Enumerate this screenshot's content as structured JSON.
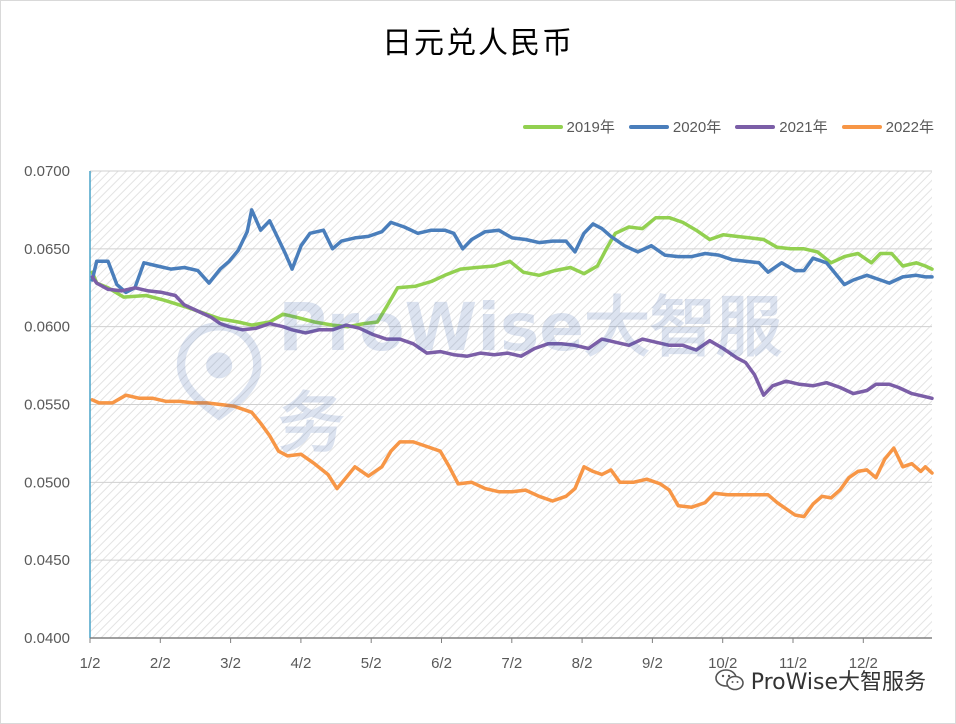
{
  "chart_data": {
    "type": "line",
    "title": "日元兑人民币",
    "xlabel": "",
    "ylabel": "",
    "ylim": [
      0.04,
      0.07
    ],
    "yticks": [
      "0.0700",
      "0.0650",
      "0.0600",
      "0.0550",
      "0.0500",
      "0.0450",
      "0.0400"
    ],
    "ytick_values": [
      0.07,
      0.065,
      0.06,
      0.055,
      0.05,
      0.045,
      0.04
    ],
    "x_ticks": [
      "1/2",
      "2/2",
      "3/2",
      "4/2",
      "5/2",
      "6/2",
      "7/2",
      "8/2",
      "9/2",
      "10/2",
      "11/2",
      "12/2"
    ],
    "grid": true,
    "legend_position": "top-right",
    "series": [
      {
        "name": "2019年",
        "color": "#92d050",
        "values": [
          [
            1,
            0.0635
          ],
          [
            3,
            0.0628
          ],
          [
            8,
            0.0625
          ],
          [
            15,
            0.0619
          ],
          [
            25,
            0.062
          ],
          [
            33,
            0.0617
          ],
          [
            42,
            0.0613
          ],
          [
            50,
            0.0609
          ],
          [
            58,
            0.0605
          ],
          [
            66,
            0.0603
          ],
          [
            72,
            0.0601
          ],
          [
            80,
            0.0603
          ],
          [
            86,
            0.0608
          ],
          [
            92,
            0.0606
          ],
          [
            100,
            0.0603
          ],
          [
            108,
            0.0601
          ],
          [
            115,
            0.06
          ],
          [
            122,
            0.0602
          ],
          [
            128,
            0.0603
          ],
          [
            133,
            0.0615
          ],
          [
            137,
            0.0625
          ],
          [
            145,
            0.0626
          ],
          [
            152,
            0.0629
          ],
          [
            158,
            0.0633
          ],
          [
            165,
            0.0637
          ],
          [
            172,
            0.0638
          ],
          [
            180,
            0.0639
          ],
          [
            187,
            0.0642
          ],
          [
            193,
            0.0635
          ],
          [
            200,
            0.0633
          ],
          [
            207,
            0.0636
          ],
          [
            214,
            0.0638
          ],
          [
            220,
            0.0634
          ],
          [
            226,
            0.0639
          ],
          [
            230,
            0.065
          ],
          [
            234,
            0.066
          ],
          [
            240,
            0.0664
          ],
          [
            246,
            0.0663
          ],
          [
            252,
            0.067
          ],
          [
            258,
            0.067
          ],
          [
            264,
            0.0667
          ],
          [
            270,
            0.0662
          ],
          [
            276,
            0.0656
          ],
          [
            282,
            0.0659
          ],
          [
            288,
            0.0658
          ],
          [
            294,
            0.0657
          ],
          [
            300,
            0.0656
          ],
          [
            306,
            0.0651
          ],
          [
            312,
            0.065
          ],
          [
            318,
            0.065
          ],
          [
            324,
            0.0648
          ],
          [
            330,
            0.0641
          ],
          [
            336,
            0.0645
          ],
          [
            342,
            0.0647
          ],
          [
            348,
            0.0641
          ],
          [
            352,
            0.0647
          ],
          [
            357,
            0.0647
          ],
          [
            362,
            0.0639
          ],
          [
            368,
            0.0641
          ],
          [
            372,
            0.0639
          ],
          [
            375,
            0.0637
          ]
        ]
      },
      {
        "name": "2020年",
        "color": "#4a7ebb",
        "values": [
          [
            1,
            0.063
          ],
          [
            3,
            0.0642
          ],
          [
            8,
            0.0642
          ],
          [
            12,
            0.0627
          ],
          [
            16,
            0.0622
          ],
          [
            20,
            0.0625
          ],
          [
            24,
            0.0641
          ],
          [
            30,
            0.0639
          ],
          [
            36,
            0.0637
          ],
          [
            42,
            0.0638
          ],
          [
            48,
            0.0636
          ],
          [
            53,
            0.0628
          ],
          [
            58,
            0.0637
          ],
          [
            62,
            0.0642
          ],
          [
            66,
            0.0649
          ],
          [
            70,
            0.0661
          ],
          [
            72,
            0.0675
          ],
          [
            76,
            0.0662
          ],
          [
            80,
            0.0668
          ],
          [
            84,
            0.0656
          ],
          [
            87,
            0.0647
          ],
          [
            90,
            0.0637
          ],
          [
            94,
            0.0652
          ],
          [
            98,
            0.066
          ],
          [
            104,
            0.0662
          ],
          [
            108,
            0.065
          ],
          [
            112,
            0.0655
          ],
          [
            118,
            0.0657
          ],
          [
            124,
            0.0658
          ],
          [
            130,
            0.0661
          ],
          [
            134,
            0.0667
          ],
          [
            140,
            0.0664
          ],
          [
            146,
            0.066
          ],
          [
            152,
            0.0662
          ],
          [
            158,
            0.0662
          ],
          [
            162,
            0.066
          ],
          [
            166,
            0.065
          ],
          [
            170,
            0.0656
          ],
          [
            176,
            0.0661
          ],
          [
            182,
            0.0662
          ],
          [
            188,
            0.0657
          ],
          [
            194,
            0.0656
          ],
          [
            200,
            0.0654
          ],
          [
            206,
            0.0655
          ],
          [
            212,
            0.0655
          ],
          [
            216,
            0.0648
          ],
          [
            220,
            0.066
          ],
          [
            224,
            0.0666
          ],
          [
            228,
            0.0663
          ],
          [
            232,
            0.0658
          ],
          [
            238,
            0.0652
          ],
          [
            244,
            0.0648
          ],
          [
            250,
            0.0652
          ],
          [
            256,
            0.0646
          ],
          [
            262,
            0.0645
          ],
          [
            268,
            0.0645
          ],
          [
            274,
            0.0647
          ],
          [
            280,
            0.0646
          ],
          [
            286,
            0.0643
          ],
          [
            292,
            0.0642
          ],
          [
            298,
            0.0641
          ],
          [
            302,
            0.0635
          ],
          [
            308,
            0.0641
          ],
          [
            314,
            0.0636
          ],
          [
            318,
            0.0636
          ],
          [
            322,
            0.0644
          ],
          [
            328,
            0.0641
          ],
          [
            332,
            0.0634
          ],
          [
            336,
            0.0627
          ],
          [
            340,
            0.063
          ],
          [
            346,
            0.0633
          ],
          [
            352,
            0.063
          ],
          [
            356,
            0.0628
          ],
          [
            362,
            0.0632
          ],
          [
            368,
            0.0633
          ],
          [
            372,
            0.0632
          ],
          [
            375,
            0.0632
          ]
        ]
      },
      {
        "name": "2021年",
        "color": "#7b5ea7",
        "values": [
          [
            1,
            0.0632
          ],
          [
            3,
            0.0628
          ],
          [
            8,
            0.0624
          ],
          [
            14,
            0.0623
          ],
          [
            20,
            0.0625
          ],
          [
            26,
            0.0623
          ],
          [
            32,
            0.0622
          ],
          [
            38,
            0.062
          ],
          [
            42,
            0.0614
          ],
          [
            48,
            0.061
          ],
          [
            54,
            0.0606
          ],
          [
            58,
            0.0602
          ],
          [
            62,
            0.06
          ],
          [
            68,
            0.0598
          ],
          [
            74,
            0.0599
          ],
          [
            80,
            0.0602
          ],
          [
            86,
            0.06
          ],
          [
            90,
            0.0598
          ],
          [
            96,
            0.0596
          ],
          [
            102,
            0.0598
          ],
          [
            108,
            0.0598
          ],
          [
            114,
            0.0601
          ],
          [
            120,
            0.0599
          ],
          [
            126,
            0.0595
          ],
          [
            132,
            0.0592
          ],
          [
            138,
            0.0592
          ],
          [
            144,
            0.0589
          ],
          [
            150,
            0.0583
          ],
          [
            156,
            0.0584
          ],
          [
            162,
            0.0582
          ],
          [
            168,
            0.0581
          ],
          [
            174,
            0.0583
          ],
          [
            180,
            0.0582
          ],
          [
            186,
            0.0583
          ],
          [
            192,
            0.0581
          ],
          [
            198,
            0.0586
          ],
          [
            204,
            0.0589
          ],
          [
            210,
            0.0589
          ],
          [
            216,
            0.0588
          ],
          [
            222,
            0.0586
          ],
          [
            228,
            0.0592
          ],
          [
            234,
            0.059
          ],
          [
            240,
            0.0588
          ],
          [
            246,
            0.0592
          ],
          [
            252,
            0.059
          ],
          [
            258,
            0.0588
          ],
          [
            264,
            0.0588
          ],
          [
            270,
            0.0585
          ],
          [
            276,
            0.0591
          ],
          [
            282,
            0.0586
          ],
          [
            288,
            0.058
          ],
          [
            292,
            0.0577
          ],
          [
            296,
            0.0569
          ],
          [
            300,
            0.0556
          ],
          [
            304,
            0.0562
          ],
          [
            310,
            0.0565
          ],
          [
            316,
            0.0563
          ],
          [
            322,
            0.0562
          ],
          [
            328,
            0.0564
          ],
          [
            334,
            0.0561
          ],
          [
            340,
            0.0557
          ],
          [
            346,
            0.0559
          ],
          [
            350,
            0.0563
          ],
          [
            356,
            0.0563
          ],
          [
            360,
            0.0561
          ],
          [
            366,
            0.0557
          ],
          [
            372,
            0.0555
          ],
          [
            375,
            0.0554
          ]
        ]
      },
      {
        "name": "2022年",
        "color": "#f79646",
        "values": [
          [
            1,
            0.0553
          ],
          [
            4,
            0.0551
          ],
          [
            10,
            0.0551
          ],
          [
            16,
            0.0556
          ],
          [
            22,
            0.0554
          ],
          [
            28,
            0.0554
          ],
          [
            34,
            0.0552
          ],
          [
            40,
            0.0552
          ],
          [
            46,
            0.0551
          ],
          [
            52,
            0.0551
          ],
          [
            58,
            0.055
          ],
          [
            64,
            0.0549
          ],
          [
            68,
            0.0547
          ],
          [
            72,
            0.0545
          ],
          [
            76,
            0.0538
          ],
          [
            80,
            0.053
          ],
          [
            84,
            0.052
          ],
          [
            88,
            0.0517
          ],
          [
            94,
            0.0518
          ],
          [
            100,
            0.0512
          ],
          [
            106,
            0.0505
          ],
          [
            110,
            0.0496
          ],
          [
            114,
            0.0503
          ],
          [
            118,
            0.051
          ],
          [
            124,
            0.0504
          ],
          [
            130,
            0.051
          ],
          [
            134,
            0.052
          ],
          [
            138,
            0.0526
          ],
          [
            144,
            0.0526
          ],
          [
            150,
            0.0523
          ],
          [
            156,
            0.052
          ],
          [
            160,
            0.051
          ],
          [
            164,
            0.0499
          ],
          [
            170,
            0.05
          ],
          [
            176,
            0.0496
          ],
          [
            182,
            0.0494
          ],
          [
            188,
            0.0494
          ],
          [
            194,
            0.0495
          ],
          [
            200,
            0.0491
          ],
          [
            206,
            0.0488
          ],
          [
            212,
            0.0491
          ],
          [
            216,
            0.0496
          ],
          [
            220,
            0.051
          ],
          [
            224,
            0.0507
          ],
          [
            228,
            0.0505
          ],
          [
            232,
            0.0508
          ],
          [
            236,
            0.05
          ],
          [
            242,
            0.05
          ],
          [
            248,
            0.0502
          ],
          [
            254,
            0.0499
          ],
          [
            258,
            0.0495
          ],
          [
            262,
            0.0485
          ],
          [
            268,
            0.0484
          ],
          [
            274,
            0.0487
          ],
          [
            278,
            0.0493
          ],
          [
            284,
            0.0492
          ],
          [
            290,
            0.0492
          ],
          [
            296,
            0.0492
          ],
          [
            302,
            0.0492
          ],
          [
            306,
            0.0487
          ],
          [
            310,
            0.0483
          ],
          [
            314,
            0.0479
          ],
          [
            318,
            0.0478
          ],
          [
            322,
            0.0486
          ],
          [
            326,
            0.0491
          ],
          [
            330,
            0.049
          ],
          [
            334,
            0.0495
          ],
          [
            338,
            0.0503
          ],
          [
            342,
            0.0507
          ],
          [
            346,
            0.0508
          ],
          [
            350,
            0.0503
          ],
          [
            354,
            0.0515
          ],
          [
            358,
            0.0522
          ],
          [
            362,
            0.051
          ],
          [
            366,
            0.0512
          ],
          [
            370,
            0.0507
          ],
          [
            372,
            0.051
          ],
          [
            375,
            0.0506
          ]
        ]
      }
    ]
  },
  "watermark": {
    "text": "ProWise大智服务"
  },
  "footer": {
    "text": "ProWise大智服务"
  }
}
